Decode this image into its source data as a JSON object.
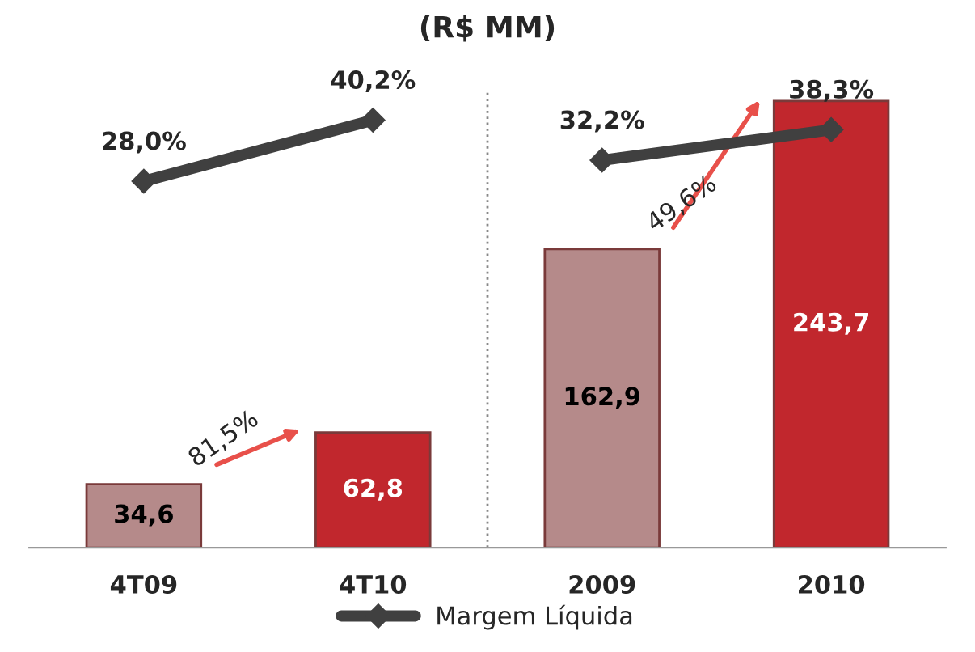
{
  "chart_data": {
    "type": "bar",
    "title": "(R$ MM)",
    "categories": [
      "4T09",
      "4T10",
      "2009",
      "2010"
    ],
    "values": [
      34.6,
      62.8,
      162.9,
      243.7
    ],
    "colors": [
      "#b58a8a",
      "#c1272d",
      "#b58a8a",
      "#c1272d"
    ],
    "value_labels": [
      "34,6",
      "62,8",
      "162,9",
      "243,7"
    ],
    "series": [
      {
        "type": "line",
        "axis": "y2",
        "name": "Margem Líquida",
        "color": "#404040",
        "values": [
          28.0,
          40.2,
          null,
          null
        ],
        "value_labels": [
          "28,0%",
          "40,2%",
          null,
          null
        ]
      },
      {
        "type": "line",
        "axis": "y2",
        "color": "#404040",
        "values": [
          null,
          null,
          32.2,
          38.3
        ],
        "value_labels": [
          null,
          null,
          "32,2%",
          "38,3%"
        ]
      }
    ],
    "annotations": [
      "81,5%",
      "49,6%"
    ],
    "marker": "diamond",
    "legend": "bottom",
    "grid": false
  }
}
